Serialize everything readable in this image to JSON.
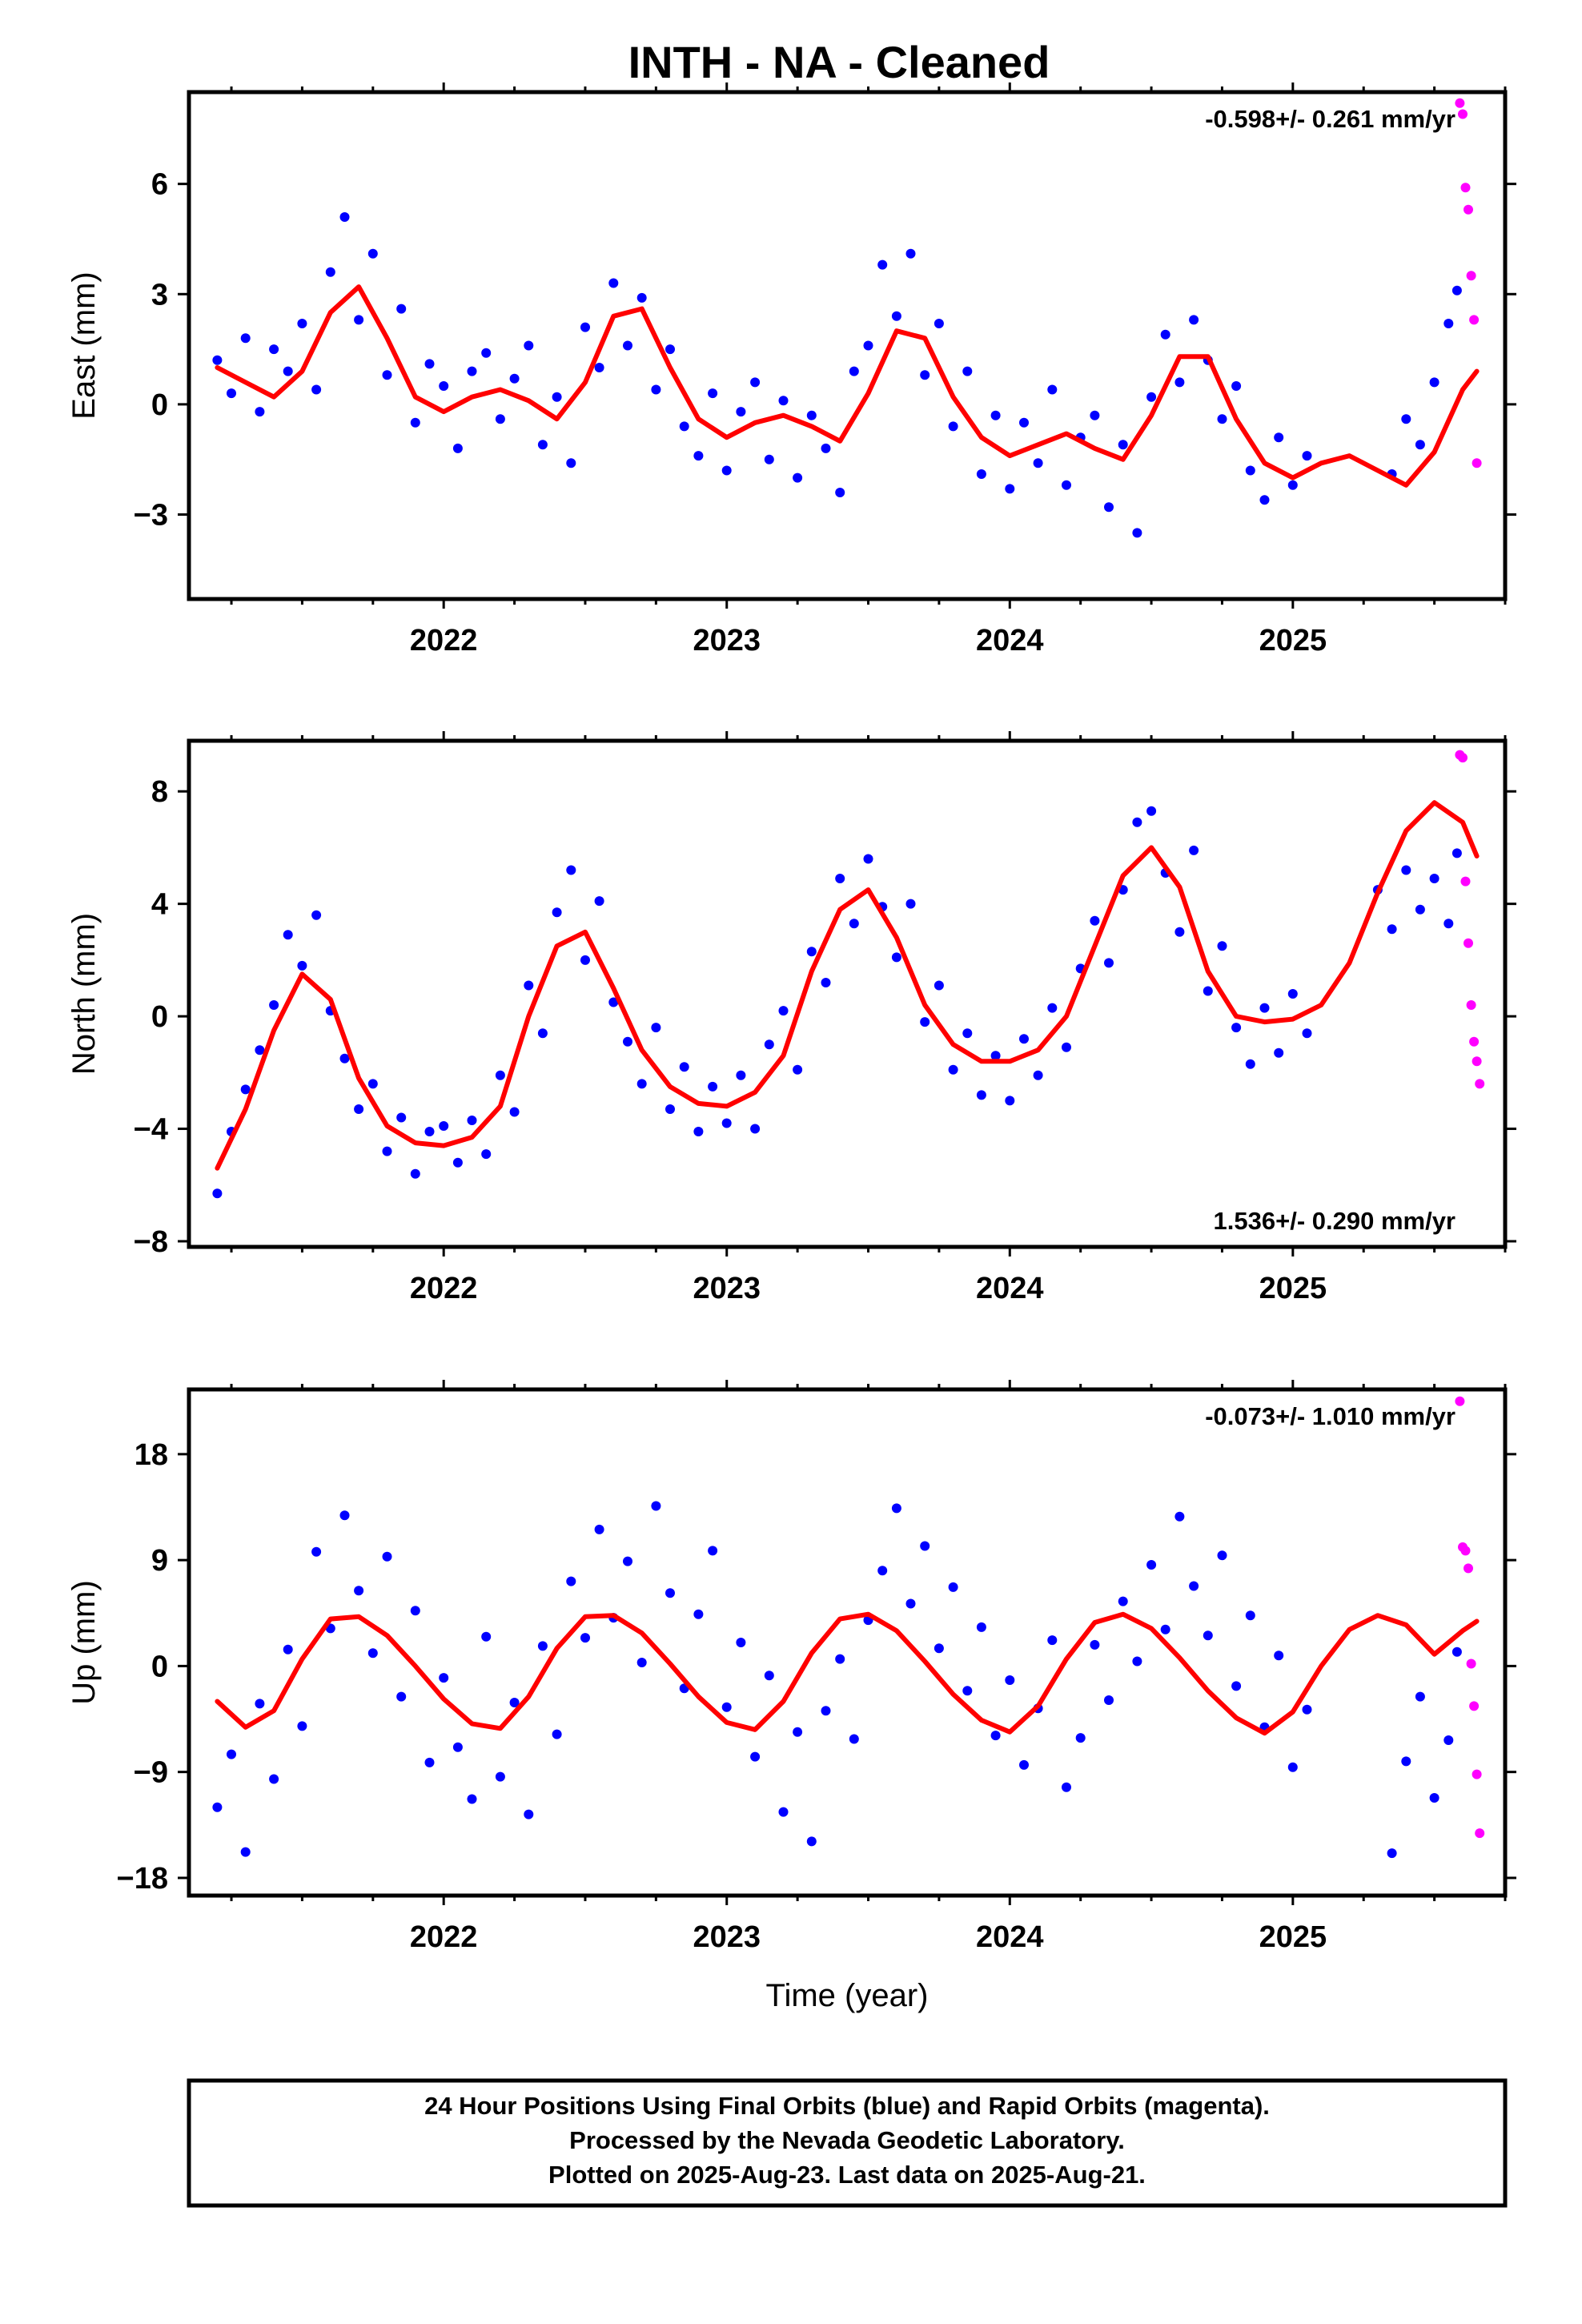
{
  "title": "INTH  - NA - Cleaned",
  "footer": {
    "lines": [
      "24 Hour Positions Using Final Orbits (blue) and Rapid Orbits (magenta).",
      "Processed by the Nevada Geodetic Laboratory.",
      "Plotted on 2025-Aug-23. Last data on 2025-Aug-21."
    ]
  },
  "colors": {
    "final": "#0000ff",
    "rapid": "#ff00ff",
    "model": "#ff0000",
    "frame": "#000000"
  },
  "chart_data": [
    {
      "type": "scatter",
      "ylabel": "East (mm)",
      "xlabel": "",
      "rate_text": "-0.598+/- 0.261 mm/yr",
      "rate_position": "top-right",
      "xlim": [
        2021.1,
        2025.75
      ],
      "ylim": [
        -5.3,
        8.5
      ],
      "xticks": [
        2022,
        2023,
        2024,
        2025
      ],
      "xtick_labels": [
        "2022",
        "2023",
        "2024",
        "2025"
      ],
      "yticks": [
        -3,
        0,
        3,
        6
      ],
      "ytick_labels": [
        "−3",
        "0",
        "3",
        "6"
      ],
      "model": {
        "name": "fit",
        "x": [
          2021.2,
          2021.3,
          2021.4,
          2021.5,
          2021.6,
          2021.7,
          2021.8,
          2021.9,
          2022.0,
          2022.1,
          2022.2,
          2022.3,
          2022.4,
          2022.5,
          2022.6,
          2022.7,
          2022.8,
          2022.9,
          2023.0,
          2023.1,
          2023.2,
          2023.3,
          2023.4,
          2023.5,
          2023.6,
          2023.7,
          2023.8,
          2023.9,
          2024.0,
          2024.1,
          2024.2,
          2024.3,
          2024.4,
          2024.5,
          2024.6,
          2024.7,
          2024.8,
          2024.9,
          2025.0,
          2025.1,
          2025.2,
          2025.3,
          2025.4,
          2025.5,
          2025.6,
          2025.65
        ],
        "y": [
          1.0,
          0.6,
          0.2,
          0.9,
          2.5,
          3.2,
          1.8,
          0.2,
          -0.2,
          0.2,
          0.4,
          0.1,
          -0.4,
          0.6,
          2.4,
          2.6,
          1.0,
          -0.4,
          -0.9,
          -0.5,
          -0.3,
          -0.6,
          -1.0,
          0.3,
          2.0,
          1.8,
          0.2,
          -0.9,
          -1.4,
          -1.1,
          -0.8,
          -1.2,
          -1.5,
          -0.3,
          1.3,
          1.3,
          -0.4,
          -1.6,
          -2.0,
          -1.6,
          -1.4,
          -1.8,
          -2.2,
          -1.3,
          0.4,
          0.9
        ]
      },
      "final": {
        "name": "Final Orbits",
        "x": [
          2021.2,
          2021.25,
          2021.3,
          2021.35,
          2021.4,
          2021.45,
          2021.5,
          2021.55,
          2021.6,
          2021.65,
          2021.7,
          2021.75,
          2021.8,
          2021.85,
          2021.9,
          2021.95,
          2022.0,
          2022.05,
          2022.1,
          2022.15,
          2022.2,
          2022.25,
          2022.3,
          2022.35,
          2022.4,
          2022.45,
          2022.5,
          2022.55,
          2022.6,
          2022.65,
          2022.7,
          2022.75,
          2022.8,
          2022.85,
          2022.9,
          2022.95,
          2023.0,
          2023.05,
          2023.1,
          2023.15,
          2023.2,
          2023.25,
          2023.3,
          2023.35,
          2023.4,
          2023.45,
          2023.5,
          2023.55,
          2023.6,
          2023.65,
          2023.7,
          2023.75,
          2023.8,
          2023.85,
          2023.9,
          2023.95,
          2024.0,
          2024.05,
          2024.1,
          2024.15,
          2024.2,
          2024.25,
          2024.3,
          2024.35,
          2024.4,
          2024.45,
          2024.5,
          2024.55,
          2024.6,
          2024.65,
          2024.7,
          2024.75,
          2024.8,
          2024.85,
          2024.9,
          2024.95,
          2025.0,
          2025.05,
          2025.35,
          2025.4,
          2025.45,
          2025.5,
          2025.55,
          2025.58
        ],
        "y": [
          1.2,
          0.3,
          1.8,
          -0.2,
          1.5,
          0.9,
          2.2,
          0.4,
          3.6,
          5.1,
          2.3,
          4.1,
          0.8,
          2.6,
          -0.5,
          1.1,
          0.5,
          -1.2,
          0.9,
          1.4,
          -0.4,
          0.7,
          1.6,
          -1.1,
          0.2,
          -1.6,
          2.1,
          1.0,
          3.3,
          1.6,
          2.9,
          0.4,
          1.5,
          -0.6,
          -1.4,
          0.3,
          -1.8,
          -0.2,
          0.6,
          -1.5,
          0.1,
          -2.0,
          -0.3,
          -1.2,
          -2.4,
          0.9,
          1.6,
          3.8,
          2.4,
          4.1,
          0.8,
          2.2,
          -0.6,
          0.9,
          -1.9,
          -0.3,
          -2.3,
          -0.5,
          -1.6,
          0.4,
          -2.2,
          -0.9,
          -0.3,
          -2.8,
          -1.1,
          -3.5,
          0.2,
          1.9,
          0.6,
          2.3,
          1.2,
          -0.4,
          0.5,
          -1.8,
          -2.6,
          -0.9,
          -2.2,
          -1.4,
          -1.9,
          -0.4,
          -1.1,
          0.6,
          2.2,
          3.1
        ]
      },
      "rapid": {
        "name": "Rapid Orbits",
        "x": [
          2025.59,
          2025.6,
          2025.61,
          2025.62,
          2025.63,
          2025.64,
          2025.65
        ],
        "y": [
          8.2,
          7.9,
          5.9,
          5.3,
          3.5,
          2.3,
          -1.6
        ]
      }
    },
    {
      "type": "scatter",
      "ylabel": "North (mm)",
      "xlabel": "",
      "rate_text": "1.536+/- 0.290 mm/yr",
      "rate_position": "bottom-right",
      "xlim": [
        2021.1,
        2025.75
      ],
      "ylim": [
        -8.2,
        9.8
      ],
      "xticks": [
        2022,
        2023,
        2024,
        2025
      ],
      "xtick_labels": [
        "2022",
        "2023",
        "2024",
        "2025"
      ],
      "yticks": [
        -8,
        -4,
        0,
        4,
        8
      ],
      "ytick_labels": [
        "−8",
        "−4",
        "0",
        "4",
        "8"
      ],
      "model": {
        "name": "fit",
        "x": [
          2021.2,
          2021.3,
          2021.4,
          2021.5,
          2021.6,
          2021.7,
          2021.8,
          2021.9,
          2022.0,
          2022.1,
          2022.2,
          2022.3,
          2022.4,
          2022.5,
          2022.6,
          2022.7,
          2022.8,
          2022.9,
          2023.0,
          2023.1,
          2023.2,
          2023.3,
          2023.4,
          2023.5,
          2023.6,
          2023.7,
          2023.8,
          2023.9,
          2024.0,
          2024.1,
          2024.2,
          2024.3,
          2024.4,
          2024.5,
          2024.6,
          2024.7,
          2024.8,
          2024.9,
          2025.0,
          2025.1,
          2025.2,
          2025.3,
          2025.4,
          2025.5,
          2025.6,
          2025.65
        ],
        "y": [
          -5.4,
          -3.3,
          -0.5,
          1.5,
          0.6,
          -2.2,
          -3.9,
          -4.5,
          -4.6,
          -4.3,
          -3.2,
          0.0,
          2.5,
          3.0,
          1.0,
          -1.2,
          -2.5,
          -3.1,
          -3.2,
          -2.7,
          -1.4,
          1.6,
          3.8,
          4.5,
          2.8,
          0.4,
          -1.0,
          -1.6,
          -1.6,
          -1.2,
          0.0,
          2.5,
          5.0,
          6.0,
          4.6,
          1.6,
          0.0,
          -0.2,
          -0.1,
          0.4,
          1.9,
          4.4,
          6.6,
          7.6,
          6.9,
          5.7
        ]
      },
      "final": {
        "name": "Final Orbits",
        "x": [
          2021.2,
          2021.25,
          2021.3,
          2021.35,
          2021.4,
          2021.45,
          2021.5,
          2021.55,
          2021.6,
          2021.65,
          2021.7,
          2021.75,
          2021.8,
          2021.85,
          2021.9,
          2021.95,
          2022.0,
          2022.05,
          2022.1,
          2022.15,
          2022.2,
          2022.25,
          2022.3,
          2022.35,
          2022.4,
          2022.45,
          2022.5,
          2022.55,
          2022.6,
          2022.65,
          2022.7,
          2022.75,
          2022.8,
          2022.85,
          2022.9,
          2022.95,
          2023.0,
          2023.05,
          2023.1,
          2023.15,
          2023.2,
          2023.25,
          2023.3,
          2023.35,
          2023.4,
          2023.45,
          2023.5,
          2023.55,
          2023.6,
          2023.65,
          2023.7,
          2023.75,
          2023.8,
          2023.85,
          2023.9,
          2023.95,
          2024.0,
          2024.05,
          2024.1,
          2024.15,
          2024.2,
          2024.25,
          2024.3,
          2024.35,
          2024.4,
          2024.45,
          2024.5,
          2024.55,
          2024.6,
          2024.65,
          2024.7,
          2024.75,
          2024.8,
          2024.85,
          2024.9,
          2024.95,
          2025.0,
          2025.05,
          2025.3,
          2025.35,
          2025.4,
          2025.45,
          2025.5,
          2025.55,
          2025.58
        ],
        "y": [
          -6.3,
          -4.1,
          -2.6,
          -1.2,
          0.4,
          2.9,
          1.8,
          3.6,
          0.2,
          -1.5,
          -3.3,
          -2.4,
          -4.8,
          -3.6,
          -5.6,
          -4.1,
          -3.9,
          -5.2,
          -3.7,
          -4.9,
          -2.1,
          -3.4,
          1.1,
          -0.6,
          3.7,
          5.2,
          2.0,
          4.1,
          0.5,
          -0.9,
          -2.4,
          -0.4,
          -3.3,
          -1.8,
          -4.1,
          -2.5,
          -3.8,
          -2.1,
          -4.0,
          -1.0,
          0.2,
          -1.9,
          2.3,
          1.2,
          4.9,
          3.3,
          5.6,
          3.9,
          2.1,
          4.0,
          -0.2,
          1.1,
          -1.9,
          -0.6,
          -2.8,
          -1.4,
          -3.0,
          -0.8,
          -2.1,
          0.3,
          -1.1,
          1.7,
          3.4,
          1.9,
          4.5,
          6.9,
          7.3,
          5.1,
          3.0,
          5.9,
          0.9,
          2.5,
          -0.4,
          -1.7,
          0.3,
          -1.3,
          0.8,
          -0.6,
          4.5,
          3.1,
          5.2,
          3.8,
          4.9,
          3.3,
          5.8
        ]
      },
      "rapid": {
        "name": "Rapid Orbits",
        "x": [
          2025.59,
          2025.6,
          2025.61,
          2025.62,
          2025.63,
          2025.64,
          2025.65,
          2025.66
        ],
        "y": [
          9.3,
          9.2,
          4.8,
          2.6,
          0.4,
          -0.9,
          -1.6,
          -2.4
        ]
      }
    },
    {
      "type": "scatter",
      "ylabel": "Up (mm)",
      "xlabel": "Time (year)",
      "rate_text": "-0.073+/- 1.010 mm/yr",
      "rate_position": "top-right",
      "xlim": [
        2021.1,
        2025.75
      ],
      "ylim": [
        -19.5,
        23.5
      ],
      "xticks": [
        2022,
        2023,
        2024,
        2025
      ],
      "xtick_labels": [
        "2022",
        "2023",
        "2024",
        "2025"
      ],
      "yticks": [
        -18,
        -9,
        0,
        9,
        18
      ],
      "ytick_labels": [
        "−18",
        "−9",
        "0",
        "9",
        "18"
      ],
      "model": {
        "name": "fit",
        "x": [
          2021.2,
          2021.3,
          2021.4,
          2021.5,
          2021.6,
          2021.7,
          2021.8,
          2021.9,
          2022.0,
          2022.1,
          2022.2,
          2022.3,
          2022.4,
          2022.5,
          2022.6,
          2022.7,
          2022.8,
          2022.9,
          2023.0,
          2023.1,
          2023.2,
          2023.3,
          2023.4,
          2023.5,
          2023.6,
          2023.7,
          2023.8,
          2023.9,
          2024.0,
          2024.1,
          2024.2,
          2024.3,
          2024.4,
          2024.5,
          2024.6,
          2024.7,
          2024.8,
          2024.9,
          2025.0,
          2025.1,
          2025.2,
          2025.3,
          2025.4,
          2025.5,
          2025.6,
          2025.65
        ],
        "y": [
          -3.0,
          -5.2,
          -3.8,
          0.6,
          4.0,
          4.2,
          2.6,
          0.0,
          -2.8,
          -4.9,
          -5.3,
          -2.6,
          1.5,
          4.2,
          4.3,
          2.8,
          0.2,
          -2.6,
          -4.8,
          -5.4,
          -3.0,
          1.1,
          4.0,
          4.4,
          3.0,
          0.4,
          -2.4,
          -4.6,
          -5.6,
          -3.4,
          0.6,
          3.7,
          4.4,
          3.2,
          0.7,
          -2.1,
          -4.4,
          -5.7,
          -3.9,
          0.0,
          3.1,
          4.3,
          3.5,
          1.0,
          3.0,
          3.8
        ]
      },
      "final": {
        "name": "Final Orbits",
        "x": [
          2021.2,
          2021.25,
          2021.3,
          2021.35,
          2021.4,
          2021.45,
          2021.5,
          2021.55,
          2021.6,
          2021.65,
          2021.7,
          2021.75,
          2021.8,
          2021.85,
          2021.9,
          2021.95,
          2022.0,
          2022.05,
          2022.1,
          2022.15,
          2022.2,
          2022.25,
          2022.3,
          2022.35,
          2022.4,
          2022.45,
          2022.5,
          2022.55,
          2022.6,
          2022.65,
          2022.7,
          2022.75,
          2022.8,
          2022.85,
          2022.9,
          2022.95,
          2023.0,
          2023.05,
          2023.1,
          2023.15,
          2023.2,
          2023.25,
          2023.3,
          2023.35,
          2023.4,
          2023.45,
          2023.5,
          2023.55,
          2023.6,
          2023.65,
          2023.7,
          2023.75,
          2023.8,
          2023.85,
          2023.9,
          2023.95,
          2024.0,
          2024.05,
          2024.1,
          2024.15,
          2024.2,
          2024.25,
          2024.3,
          2024.35,
          2024.4,
          2024.45,
          2024.5,
          2024.55,
          2024.6,
          2024.65,
          2024.7,
          2024.75,
          2024.8,
          2024.85,
          2024.9,
          2024.95,
          2025.0,
          2025.05,
          2025.35,
          2025.4,
          2025.45,
          2025.5,
          2025.55,
          2025.58
        ],
        "y": [
          -12.0,
          -7.5,
          -15.8,
          -3.2,
          -9.6,
          1.4,
          -5.1,
          9.7,
          3.2,
          12.8,
          6.4,
          1.1,
          9.3,
          -2.6,
          4.7,
          -8.2,
          -1.0,
          -6.9,
          -11.3,
          2.5,
          -9.4,
          -3.1,
          -12.6,
          1.7,
          -5.8,
          7.2,
          2.4,
          11.6,
          4.1,
          8.9,
          0.3,
          13.6,
          6.2,
          -1.9,
          4.4,
          9.8,
          -3.5,
          2.0,
          -7.7,
          -0.8,
          -12.4,
          -5.6,
          -14.9,
          -3.8,
          0.6,
          -6.2,
          3.9,
          8.1,
          13.4,
          5.3,
          10.2,
          1.5,
          6.7,
          -2.1,
          3.3,
          -5.9,
          -1.2,
          -8.4,
          -3.6,
          2.2,
          -10.3,
          -6.1,
          1.8,
          -2.9,
          5.5,
          0.4,
          8.6,
          3.1,
          12.7,
          6.8,
          2.6,
          9.4,
          -1.7,
          4.3,
          -5.2,
          0.9,
          -8.6,
          -3.7,
          -15.9,
          -8.1,
          -2.6,
          -11.2,
          -6.3,
          1.2
        ]
      },
      "rapid": {
        "name": "Rapid Orbits",
        "x": [
          2025.59,
          2025.6,
          2025.61,
          2025.62,
          2025.63,
          2025.64,
          2025.65,
          2025.66
        ],
        "y": [
          22.5,
          10.1,
          9.8,
          8.3,
          0.2,
          -3.4,
          -9.2,
          -14.2
        ]
      }
    }
  ]
}
